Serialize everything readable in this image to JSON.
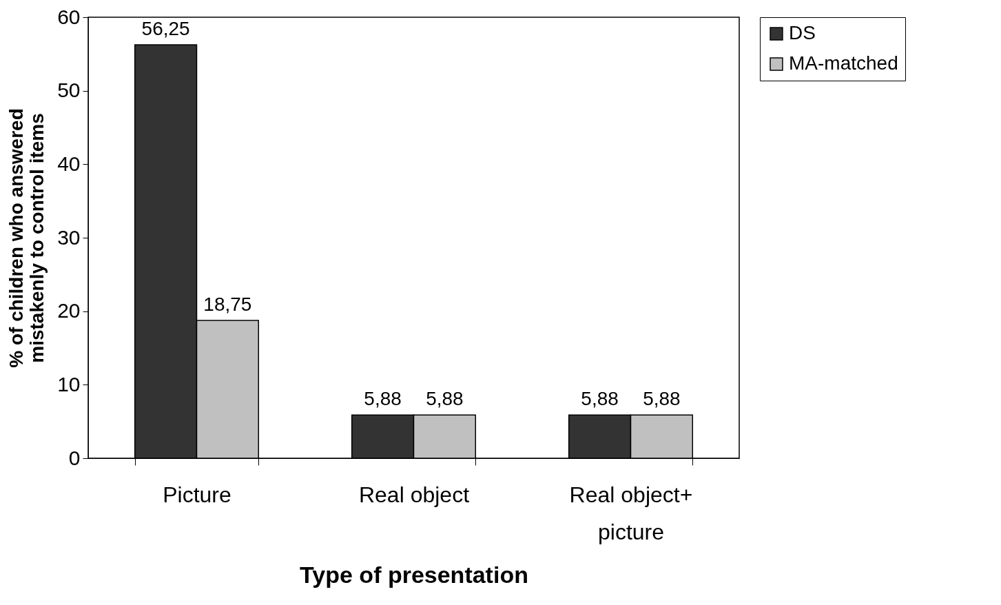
{
  "chart_data": {
    "type": "bar",
    "xlabel": "Type of presentation",
    "ylabel": "% of children who answered mistakenly to control items",
    "categories": [
      "Picture",
      "Real object",
      "Real object+ picture"
    ],
    "series": [
      {
        "name": "DS",
        "color": "#333333",
        "values": [
          56.25,
          5.88,
          5.88
        ],
        "value_labels": [
          "56,25",
          "5,88",
          "5,88"
        ]
      },
      {
        "name": "MA-matched",
        "color": "#c0c0c0",
        "values": [
          18.75,
          5.88,
          5.88
        ],
        "value_labels": [
          "18,75",
          "5,88",
          "5,88"
        ]
      }
    ],
    "ylim": [
      0,
      60
    ],
    "yticks": [
      0,
      10,
      20,
      30,
      40,
      50,
      60
    ],
    "grid": false,
    "legend": "right"
  }
}
